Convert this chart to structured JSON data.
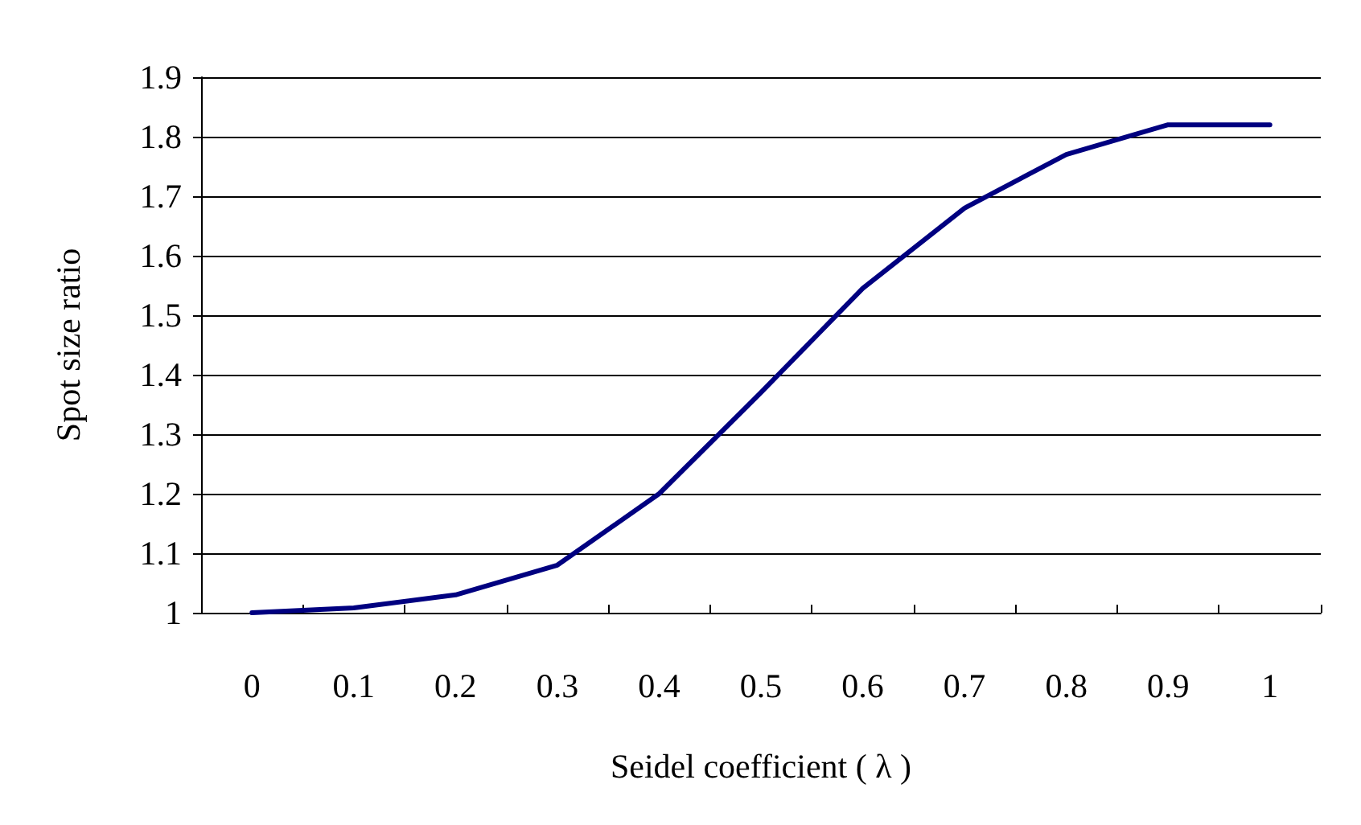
{
  "chart_data": {
    "type": "line",
    "xlabel": "Seidel coefficient ( λ )",
    "ylabel": "Spot size ratio",
    "categories": [
      "0",
      "0.1",
      "0.2",
      "0.3",
      "0.4",
      "0.5",
      "0.6",
      "0.7",
      "0.8",
      "0.9",
      "1"
    ],
    "series": [
      {
        "color": "#000080",
        "values": [
          1.0,
          1.008,
          1.03,
          1.08,
          1.2,
          1.37,
          1.545,
          1.68,
          1.77,
          1.82,
          1.82
        ]
      }
    ],
    "ylim": [
      1,
      1.9
    ],
    "yticks": [
      1,
      1.1,
      1.2,
      1.3,
      1.4,
      1.5,
      1.6,
      1.7,
      1.8,
      1.9
    ],
    "grid": "y",
    "marker": "none",
    "line_style": "solid"
  }
}
